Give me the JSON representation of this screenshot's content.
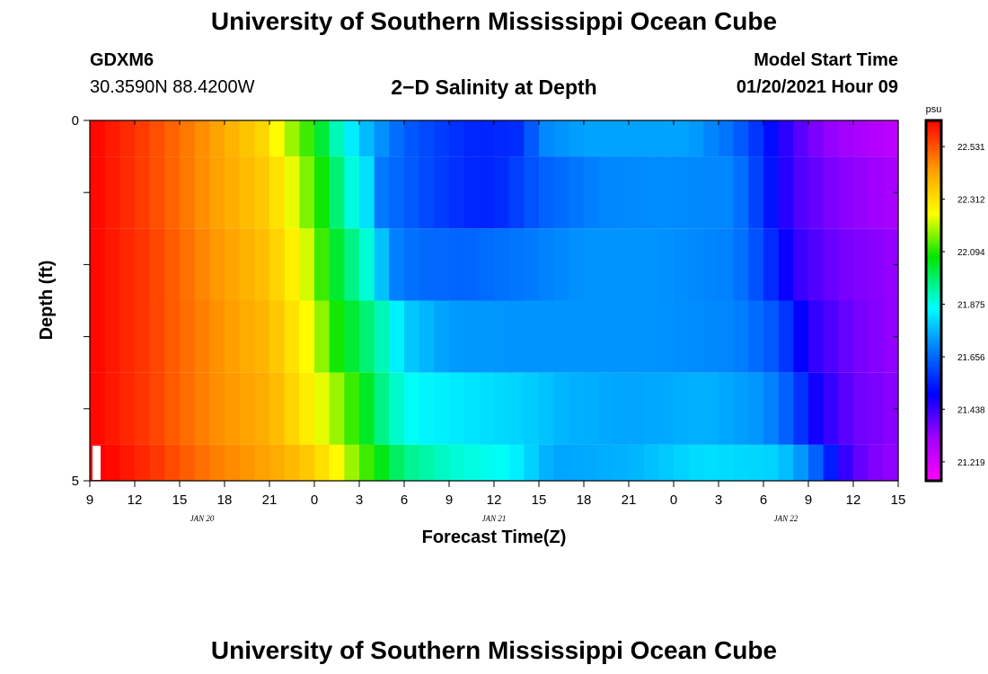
{
  "header": {
    "top_title": "University of Southern Mississippi Ocean Cube",
    "bottom_title": "University of Southern Mississippi Ocean Cube",
    "station_id": "GDXM6",
    "station_coords": "30.3590N 88.4200W",
    "plot_title": "2−D Salinity at Depth",
    "model_start_label": "Model Start Time",
    "model_start_value": "01/20/2021 Hour 09"
  },
  "chart_data": {
    "type": "heatmap",
    "title": "2−D Salinity at Depth",
    "xlabel": "Forecast Time(Z)",
    "ylabel": "Depth (ft)",
    "x_start_hour": 9,
    "x_end_hour": 63,
    "x_ticks": [
      {
        "hour": 9,
        "label": "9"
      },
      {
        "hour": 12,
        "label": "12"
      },
      {
        "hour": 15,
        "label": "15"
      },
      {
        "hour": 18,
        "label": "18"
      },
      {
        "hour": 21,
        "label": "21"
      },
      {
        "hour": 24,
        "label": "0"
      },
      {
        "hour": 27,
        "label": "3"
      },
      {
        "hour": 30,
        "label": "6"
      },
      {
        "hour": 33,
        "label": "9"
      },
      {
        "hour": 36,
        "label": "12"
      },
      {
        "hour": 39,
        "label": "15"
      },
      {
        "hour": 42,
        "label": "18"
      },
      {
        "hour": 45,
        "label": "21"
      },
      {
        "hour": 48,
        "label": "0"
      },
      {
        "hour": 51,
        "label": "3"
      },
      {
        "hour": 54,
        "label": "6"
      },
      {
        "hour": 57,
        "label": "9"
      },
      {
        "hour": 60,
        "label": "12"
      },
      {
        "hour": 63,
        "label": "15"
      }
    ],
    "date_labels": [
      {
        "hour": 16.5,
        "label": "JAN  20"
      },
      {
        "hour": 36.0,
        "label": "JAN  21"
      },
      {
        "hour": 55.5,
        "label": "JAN  22"
      }
    ],
    "y_range": [
      0,
      5
    ],
    "y_ticks": [
      {
        "depth": 0,
        "label": "0"
      },
      {
        "depth": 1,
        "label": ""
      },
      {
        "depth": 2,
        "label": ""
      },
      {
        "depth": 3,
        "label": ""
      },
      {
        "depth": 4,
        "label": ""
      },
      {
        "depth": 5,
        "label": "5"
      }
    ],
    "depth_bands": [
      {
        "top": 0.0,
        "bottom": 0.5,
        "profile": [
          [
            9,
            22.64
          ],
          [
            13,
            22.55
          ],
          [
            17,
            22.44
          ],
          [
            20.5,
            22.33
          ],
          [
            22.5,
            22.18
          ],
          [
            24,
            22.08
          ],
          [
            25.5,
            21.92
          ],
          [
            26.7,
            21.82
          ],
          [
            28,
            21.74
          ],
          [
            30,
            21.64
          ],
          [
            33,
            21.58
          ],
          [
            35,
            21.55
          ],
          [
            38,
            21.57
          ],
          [
            39,
            21.7
          ],
          [
            42,
            21.74
          ],
          [
            45,
            21.74
          ],
          [
            49,
            21.74
          ],
          [
            52,
            21.66
          ],
          [
            53.5,
            21.58
          ],
          [
            56,
            21.42
          ],
          [
            58,
            21.34
          ],
          [
            63,
            21.26
          ]
        ]
      },
      {
        "top": 0.5,
        "bottom": 1.5,
        "profile": [
          [
            9,
            22.64
          ],
          [
            13,
            22.55
          ],
          [
            17,
            22.44
          ],
          [
            21,
            22.34
          ],
          [
            23,
            22.2
          ],
          [
            24.5,
            22.08
          ],
          [
            26,
            21.92
          ],
          [
            27.5,
            21.82
          ],
          [
            28.5,
            21.68
          ],
          [
            31,
            21.62
          ],
          [
            34,
            21.56
          ],
          [
            36,
            21.55
          ],
          [
            39,
            21.64
          ],
          [
            43,
            21.7
          ],
          [
            47,
            21.71
          ],
          [
            52,
            21.7
          ],
          [
            53.5,
            21.6
          ],
          [
            56,
            21.42
          ],
          [
            59,
            21.35
          ],
          [
            63,
            21.3
          ]
        ]
      },
      {
        "top": 1.5,
        "bottom": 2.5,
        "profile": [
          [
            9,
            22.64
          ],
          [
            13,
            22.56
          ],
          [
            17,
            22.45
          ],
          [
            21,
            22.36
          ],
          [
            23.5,
            22.22
          ],
          [
            24.8,
            22.08
          ],
          [
            26.5,
            21.96
          ],
          [
            28,
            21.86
          ],
          [
            29,
            21.7
          ],
          [
            31,
            21.66
          ],
          [
            34,
            21.65
          ],
          [
            38,
            21.68
          ],
          [
            42,
            21.72
          ],
          [
            47,
            21.72
          ],
          [
            52,
            21.69
          ],
          [
            54,
            21.6
          ],
          [
            56,
            21.45
          ],
          [
            59,
            21.37
          ],
          [
            63,
            21.33
          ]
        ]
      },
      {
        "top": 2.5,
        "bottom": 3.5,
        "profile": [
          [
            9,
            22.64
          ],
          [
            13,
            22.56
          ],
          [
            17,
            22.46
          ],
          [
            21,
            22.38
          ],
          [
            23.8,
            22.24
          ],
          [
            25.2,
            22.1
          ],
          [
            27,
            22.0
          ],
          [
            28.5,
            21.92
          ],
          [
            30,
            21.8
          ],
          [
            33,
            21.73
          ],
          [
            37,
            21.72
          ],
          [
            42,
            21.72
          ],
          [
            47,
            21.72
          ],
          [
            52,
            21.7
          ],
          [
            55,
            21.62
          ],
          [
            57,
            21.46
          ],
          [
            60,
            21.37
          ],
          [
            63,
            21.33
          ]
        ]
      },
      {
        "top": 3.5,
        "bottom": 4.5,
        "profile": [
          [
            9,
            22.64
          ],
          [
            13,
            22.56
          ],
          [
            17,
            22.46
          ],
          [
            21,
            22.4
          ],
          [
            24,
            22.26
          ],
          [
            25.8,
            22.16
          ],
          [
            27.5,
            22.04
          ],
          [
            29,
            21.92
          ],
          [
            31,
            21.85
          ],
          [
            34,
            21.83
          ],
          [
            38,
            21.8
          ],
          [
            41,
            21.76
          ],
          [
            45,
            21.74
          ],
          [
            50,
            21.76
          ],
          [
            54,
            21.72
          ],
          [
            56,
            21.62
          ],
          [
            57.5,
            21.48
          ],
          [
            60,
            21.38
          ],
          [
            63,
            21.34
          ]
        ]
      },
      {
        "top": 4.5,
        "bottom": 5.0,
        "profile": [
          [
            9,
            22.66
          ],
          [
            13,
            22.58
          ],
          [
            17,
            22.48
          ],
          [
            21,
            22.42
          ],
          [
            24,
            22.34
          ],
          [
            25.5,
            22.26
          ],
          [
            26.5,
            22.18
          ],
          [
            28,
            22.08
          ],
          [
            30,
            21.96
          ],
          [
            33,
            21.9
          ],
          [
            37,
            21.86
          ],
          [
            38.5,
            21.8
          ],
          [
            40,
            21.74
          ],
          [
            45,
            21.76
          ],
          [
            50,
            21.82
          ],
          [
            55,
            21.8
          ],
          [
            57,
            21.7
          ],
          [
            58.5,
            21.54
          ],
          [
            59.5,
            21.44
          ],
          [
            61,
            21.36
          ],
          [
            63,
            21.33
          ]
        ]
      }
    ],
    "colorbar": {
      "unit": "psu",
      "min": 21.14,
      "max": 22.64,
      "tick_labels": [
        "22.531",
        "22.312",
        "22.094",
        "21.875",
        "21.656",
        "21.438",
        "21.219"
      ],
      "tick_values": [
        22.531,
        22.312,
        22.094,
        21.875,
        21.656,
        21.438,
        21.219
      ]
    }
  }
}
